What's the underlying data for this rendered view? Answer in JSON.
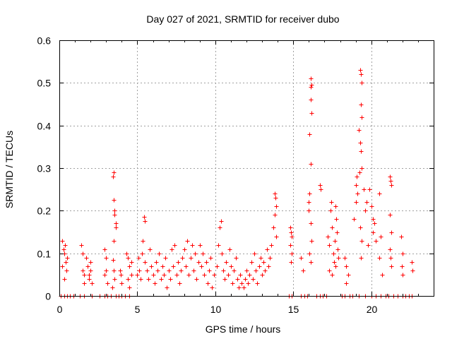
{
  "chart_data": {
    "type": "scatter",
    "title": "Day 027 of 2021, SRMTID for receiver dubo",
    "xlabel": "GPS time / hours",
    "ylabel": "SRMTID / TECUs",
    "xlim": [
      0,
      24
    ],
    "ylim": [
      0,
      0.6
    ],
    "xticks": [
      0,
      5,
      10,
      15,
      20
    ],
    "xtick_labels": [
      "0",
      "5",
      "10",
      "15",
      "20"
    ],
    "yticks": [
      0,
      0.1,
      0.2,
      0.3,
      0.4,
      0.5,
      0.6
    ],
    "ytick_labels": [
      "0",
      "0.1",
      "0.2",
      "0.3",
      "0.4",
      "0.5",
      "0.6"
    ],
    "grid": true,
    "legend": "none",
    "marker": "plus",
    "color": "#ff0000",
    "series": [
      {
        "name": "SRMTID",
        "points": [
          [
            0.2,
            0.13
          ],
          [
            0.25,
            0.11
          ],
          [
            0.3,
            0.1
          ],
          [
            0.35,
            0.12
          ],
          [
            0.4,
            0.08
          ],
          [
            0.45,
            0.06
          ],
          [
            0.3,
            0.04
          ],
          [
            0.5,
            0.09
          ],
          [
            0.2,
            0.07
          ],
          [
            1.4,
            0.12
          ],
          [
            1.5,
            0.1
          ],
          [
            1.5,
            0.06
          ],
          [
            1.6,
            0.05
          ],
          [
            1.7,
            0.09
          ],
          [
            1.8,
            0.07
          ],
          [
            1.9,
            0.05
          ],
          [
            2.0,
            0.08
          ],
          [
            2.1,
            0.03
          ],
          [
            2.0,
            0.06
          ],
          [
            1.9,
            0.04
          ],
          [
            1.6,
            0.03
          ],
          [
            2.9,
            0.11
          ],
          [
            3.0,
            0.09
          ],
          [
            3.0,
            0.06
          ],
          [
            2.9,
            0.05
          ],
          [
            3.1,
            0.03
          ],
          [
            3.45,
            0.28
          ],
          [
            3.5,
            0.29
          ],
          [
            3.5,
            0.225
          ],
          [
            3.55,
            0.2
          ],
          [
            3.55,
            0.19
          ],
          [
            3.6,
            0.17
          ],
          [
            3.6,
            0.16
          ],
          [
            3.5,
            0.13
          ],
          [
            3.45,
            0.085
          ],
          [
            3.5,
            0.06
          ],
          [
            3.55,
            0.04
          ],
          [
            3.4,
            0.02
          ],
          [
            3.9,
            0.06
          ],
          [
            3.95,
            0.05
          ],
          [
            4.0,
            0.03
          ],
          [
            4.3,
            0.1
          ],
          [
            4.4,
            0.09
          ],
          [
            4.5,
            0.07
          ],
          [
            4.6,
            0.05
          ],
          [
            4.4,
            0.04
          ],
          [
            4.5,
            0.02
          ],
          [
            4.6,
            0.08
          ],
          [
            5.0,
            0.05
          ],
          [
            5.05,
            0.09
          ],
          [
            5.1,
            0.06
          ],
          [
            5.2,
            0.04
          ],
          [
            5.3,
            0.1
          ],
          [
            5.35,
            0.13
          ],
          [
            5.45,
            0.185
          ],
          [
            5.5,
            0.175
          ],
          [
            5.5,
            0.08
          ],
          [
            5.6,
            0.06
          ],
          [
            5.7,
            0.04
          ],
          [
            5.8,
            0.11
          ],
          [
            5.9,
            0.07
          ],
          [
            6.0,
            0.05
          ],
          [
            6.1,
            0.03
          ],
          [
            6.2,
            0.08
          ],
          [
            6.3,
            0.06
          ],
          [
            6.4,
            0.1
          ],
          [
            6.5,
            0.04
          ],
          [
            6.6,
            0.07
          ],
          [
            6.7,
            0.05
          ],
          [
            6.8,
            0.09
          ],
          [
            6.9,
            0.02
          ],
          [
            7.0,
            0.06
          ],
          [
            7.1,
            0.04
          ],
          [
            7.2,
            0.11
          ],
          [
            7.3,
            0.07
          ],
          [
            7.4,
            0.12
          ],
          [
            7.5,
            0.05
          ],
          [
            7.6,
            0.08
          ],
          [
            7.7,
            0.03
          ],
          [
            7.8,
            0.06
          ],
          [
            7.9,
            0.09
          ],
          [
            8.0,
            0.11
          ],
          [
            8.1,
            0.07
          ],
          [
            8.2,
            0.13
          ],
          [
            8.3,
            0.05
          ],
          [
            8.4,
            0.09
          ],
          [
            8.5,
            0.12
          ],
          [
            8.6,
            0.06
          ],
          [
            8.7,
            0.1
          ],
          [
            8.8,
            0.04
          ],
          [
            8.9,
            0.08
          ],
          [
            9.0,
            0.12
          ],
          [
            9.1,
            0.07
          ],
          [
            9.2,
            0.1
          ],
          [
            9.3,
            0.05
          ],
          [
            9.4,
            0.08
          ],
          [
            9.5,
            0.03
          ],
          [
            9.6,
            0.06
          ],
          [
            9.7,
            0.09
          ],
          [
            9.8,
            0.02
          ],
          [
            9.9,
            0.05
          ],
          [
            10.1,
            0.07
          ],
          [
            10.2,
            0.12
          ],
          [
            10.3,
            0.16
          ],
          [
            10.35,
            0.175
          ],
          [
            10.4,
            0.1
          ],
          [
            10.5,
            0.06
          ],
          [
            10.6,
            0.04
          ],
          [
            10.7,
            0.08
          ],
          [
            10.8,
            0.05
          ],
          [
            10.9,
            0.11
          ],
          [
            11.0,
            0.07
          ],
          [
            11.1,
            0.03
          ],
          [
            11.2,
            0.06
          ],
          [
            11.3,
            0.09
          ],
          [
            11.4,
            0.04
          ],
          [
            11.5,
            0.02
          ],
          [
            11.6,
            0.05
          ],
          [
            11.7,
            0.03
          ],
          [
            11.8,
            0.02
          ],
          [
            11.9,
            0.04
          ],
          [
            12.0,
            0.06
          ],
          [
            12.1,
            0.03
          ],
          [
            12.2,
            0.05
          ],
          [
            12.3,
            0.08
          ],
          [
            12.4,
            0.04
          ],
          [
            12.5,
            0.1
          ],
          [
            12.6,
            0.06
          ],
          [
            12.7,
            0.03
          ],
          [
            12.8,
            0.07
          ],
          [
            12.9,
            0.09
          ],
          [
            13.0,
            0.05
          ],
          [
            13.1,
            0.08
          ],
          [
            13.2,
            0.06
          ],
          [
            13.3,
            0.11
          ],
          [
            13.4,
            0.07
          ],
          [
            13.5,
            0.09
          ],
          [
            13.6,
            0.12
          ],
          [
            13.7,
            0.16
          ],
          [
            13.8,
            0.24
          ],
          [
            13.85,
            0.23
          ],
          [
            13.9,
            0.21
          ],
          [
            13.8,
            0.19
          ],
          [
            13.9,
            0.14
          ],
          [
            14.8,
            0.16
          ],
          [
            14.85,
            0.15
          ],
          [
            14.9,
            0.14
          ],
          [
            14.8,
            0.12
          ],
          [
            14.9,
            0.1
          ],
          [
            14.85,
            0.08
          ],
          [
            15.5,
            0.09
          ],
          [
            15.6,
            0.06
          ],
          [
            16.0,
            0.22
          ],
          [
            16.05,
            0.24
          ],
          [
            16.1,
            0.51
          ],
          [
            16.1,
            0.49
          ],
          [
            16.15,
            0.495
          ],
          [
            16.1,
            0.46
          ],
          [
            16.15,
            0.43
          ],
          [
            16.05,
            0.38
          ],
          [
            16.1,
            0.31
          ],
          [
            16.0,
            0.2
          ],
          [
            16.1,
            0.17
          ],
          [
            16.15,
            0.13
          ],
          [
            16.05,
            0.1
          ],
          [
            16.1,
            0.08
          ],
          [
            16.7,
            0.26
          ],
          [
            16.75,
            0.25
          ],
          [
            17.2,
            0.14
          ],
          [
            17.3,
            0.12
          ],
          [
            17.4,
            0.2
          ],
          [
            17.45,
            0.22
          ],
          [
            17.5,
            0.16
          ],
          [
            17.55,
            0.1
          ],
          [
            17.6,
            0.08
          ],
          [
            17.65,
            0.13
          ],
          [
            17.7,
            0.21
          ],
          [
            17.75,
            0.18
          ],
          [
            17.8,
            0.15
          ],
          [
            17.85,
            0.11
          ],
          [
            17.9,
            0.09
          ],
          [
            17.3,
            0.06
          ],
          [
            17.5,
            0.05
          ],
          [
            17.7,
            0.07
          ],
          [
            18.3,
            0.09
          ],
          [
            18.4,
            0.07
          ],
          [
            18.5,
            0.05
          ],
          [
            18.4,
            0.03
          ],
          [
            18.9,
            0.18
          ],
          [
            19.0,
            0.26
          ],
          [
            19.05,
            0.28
          ],
          [
            19.1,
            0.24
          ],
          [
            19.0,
            0.22
          ],
          [
            19.2,
            0.39
          ],
          [
            19.25,
            0.29
          ],
          [
            19.3,
            0.53
          ],
          [
            19.35,
            0.52
          ],
          [
            19.4,
            0.5
          ],
          [
            19.35,
            0.45
          ],
          [
            19.4,
            0.42
          ],
          [
            19.3,
            0.36
          ],
          [
            19.35,
            0.34
          ],
          [
            19.4,
            0.3
          ],
          [
            19.3,
            0.16
          ],
          [
            19.4,
            0.13
          ],
          [
            19.35,
            0.09
          ],
          [
            19.5,
            0.25
          ],
          [
            19.6,
            0.2
          ],
          [
            19.7,
            0.22
          ],
          [
            19.8,
            0.12
          ],
          [
            19.9,
            0.25
          ],
          [
            20.0,
            0.21
          ],
          [
            20.1,
            0.15
          ],
          [
            20.2,
            0.17
          ],
          [
            20.3,
            0.13
          ],
          [
            20.1,
            0.18
          ],
          [
            20.5,
            0.24
          ],
          [
            20.6,
            0.14
          ],
          [
            20.5,
            0.09
          ],
          [
            20.7,
            0.05
          ],
          [
            21.2,
            0.28
          ],
          [
            21.25,
            0.27
          ],
          [
            21.3,
            0.26
          ],
          [
            21.2,
            0.19
          ],
          [
            21.3,
            0.15
          ],
          [
            21.2,
            0.11
          ],
          [
            21.3,
            0.07
          ],
          [
            21.25,
            0.09
          ],
          [
            21.9,
            0.14
          ],
          [
            22.0,
            0.1
          ],
          [
            21.95,
            0.07
          ],
          [
            22.0,
            0.05
          ],
          [
            22.6,
            0.08
          ],
          [
            22.65,
            0.06
          ]
        ],
        "zeros": [
          0.1,
          0.3,
          0.5,
          0.7,
          0.9,
          1.3,
          1.6,
          2.1,
          2.6,
          2.9,
          3.1,
          3.3,
          3.6,
          3.8,
          4.0,
          4.2,
          4.5,
          14.7,
          14.9,
          15.5,
          15.7,
          15.9,
          16.5,
          16.7,
          16.9,
          17.1,
          18.1,
          18.3,
          18.6,
          18.8,
          19.2,
          19.6,
          20.0,
          20.3,
          20.6,
          20.9,
          21.1,
          21.4,
          21.7,
          22.0,
          22.2,
          22.4,
          22.6
        ]
      }
    ]
  }
}
